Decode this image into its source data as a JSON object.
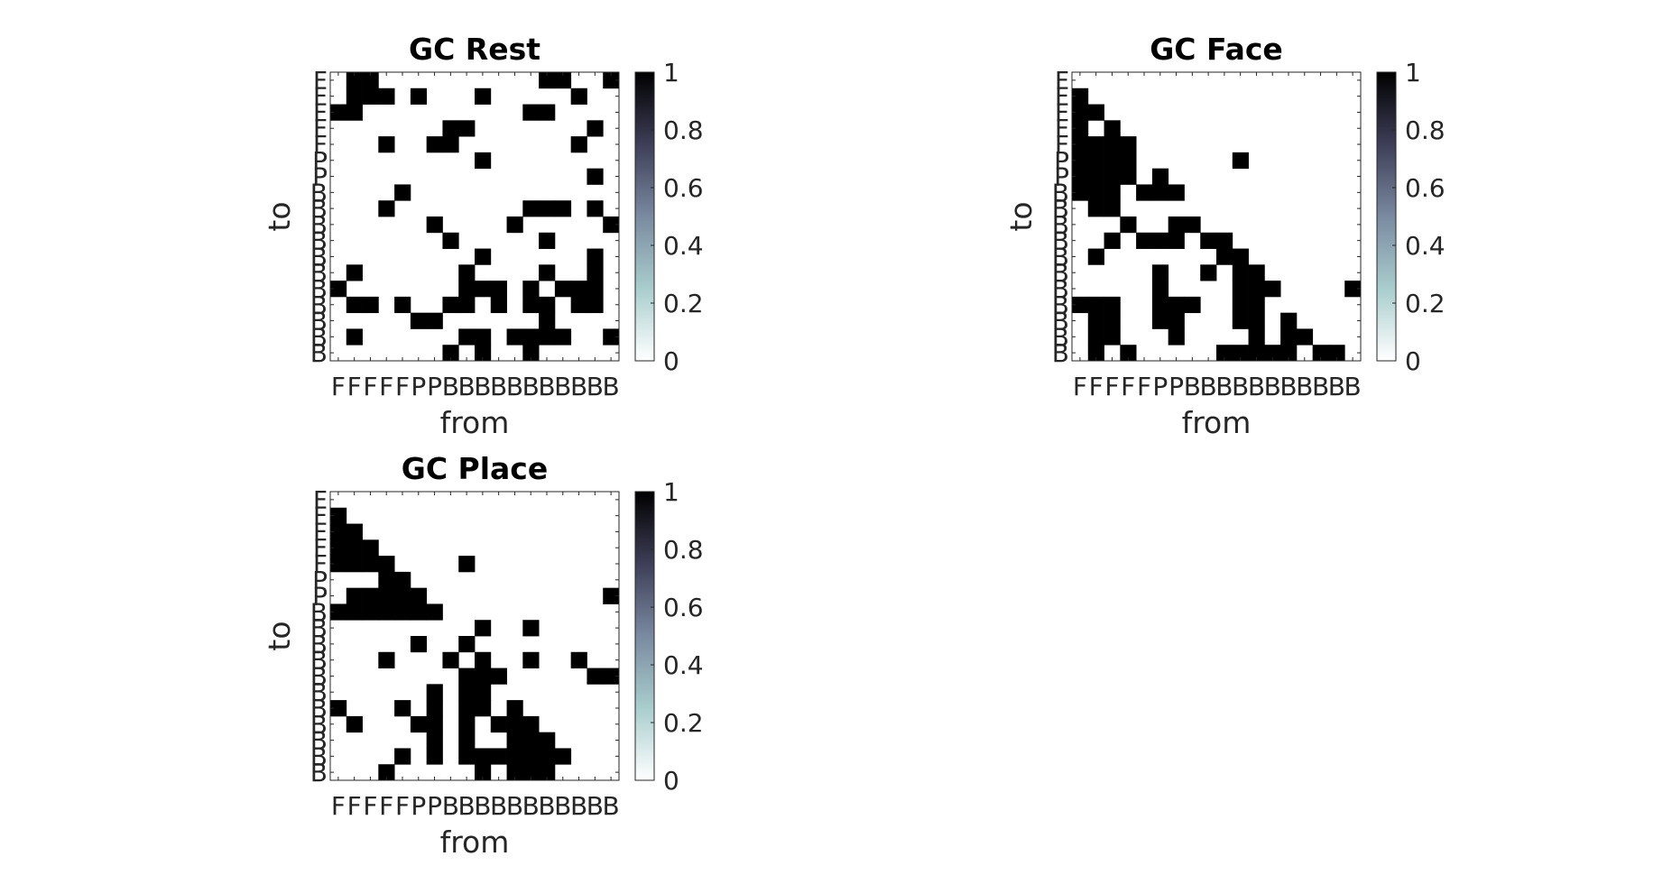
{
  "chart_data": [
    {
      "type": "heatmap",
      "title": "GC Rest",
      "xlabel": "from",
      "ylabel": "to",
      "x_tick_labels": [
        "F",
        "F",
        "F",
        "F",
        "F",
        "P",
        "P",
        "B",
        "B",
        "B",
        "B",
        "B",
        "B",
        "B",
        "B",
        "B",
        "B",
        "B"
      ],
      "y_tick_labels": [
        "F",
        "F",
        "F",
        "F",
        "F",
        "P",
        "P",
        "B",
        "B",
        "B",
        "B",
        "B",
        "B",
        "B",
        "B",
        "B",
        "B",
        "B"
      ],
      "colorbar": {
        "min": 0,
        "max": 1,
        "ticks": [
          "0",
          "0.2",
          "0.4",
          "0.6",
          "0.8",
          "1"
        ]
      },
      "values": [
        [
          0,
          1,
          1,
          0,
          0,
          0,
          0,
          0,
          0,
          0,
          0,
          0,
          0,
          1,
          1,
          0,
          0,
          1
        ],
        [
          0,
          1,
          1,
          1,
          0,
          1,
          0,
          0,
          0,
          1,
          0,
          0,
          0,
          0,
          0,
          1,
          0,
          0
        ],
        [
          1,
          1,
          0,
          0,
          0,
          0,
          0,
          0,
          0,
          0,
          0,
          0,
          1,
          1,
          0,
          0,
          0,
          0
        ],
        [
          0,
          0,
          0,
          0,
          0,
          0,
          0,
          1,
          1,
          0,
          0,
          0,
          0,
          0,
          0,
          0,
          1,
          0
        ],
        [
          0,
          0,
          0,
          1,
          0,
          0,
          1,
          1,
          0,
          0,
          0,
          0,
          0,
          0,
          0,
          1,
          0,
          0
        ],
        [
          0,
          0,
          0,
          0,
          0,
          0,
          0,
          0,
          0,
          1,
          0,
          0,
          0,
          0,
          0,
          0,
          0,
          0
        ],
        [
          0,
          0,
          0,
          0,
          0,
          0,
          0,
          0,
          0,
          0,
          0,
          0,
          0,
          0,
          0,
          0,
          1,
          0
        ],
        [
          0,
          0,
          0,
          0,
          1,
          0,
          0,
          0,
          0,
          0,
          0,
          0,
          0,
          0,
          0,
          0,
          0,
          0
        ],
        [
          0,
          0,
          0,
          1,
          0,
          0,
          0,
          0,
          0,
          0,
          0,
          0,
          1,
          1,
          1,
          0,
          1,
          0
        ],
        [
          0,
          0,
          0,
          0,
          0,
          0,
          1,
          0,
          0,
          0,
          0,
          1,
          0,
          0,
          0,
          0,
          0,
          1
        ],
        [
          0,
          0,
          0,
          0,
          0,
          0,
          0,
          1,
          0,
          0,
          0,
          0,
          0,
          1,
          0,
          0,
          0,
          0
        ],
        [
          0,
          0,
          0,
          0,
          0,
          0,
          0,
          0,
          0,
          1,
          0,
          0,
          0,
          0,
          0,
          0,
          1,
          0
        ],
        [
          0,
          1,
          0,
          0,
          0,
          0,
          0,
          0,
          1,
          0,
          0,
          0,
          0,
          1,
          0,
          0,
          1,
          0
        ],
        [
          1,
          0,
          0,
          0,
          0,
          0,
          0,
          0,
          1,
          1,
          1,
          0,
          1,
          0,
          1,
          1,
          1,
          0
        ],
        [
          0,
          1,
          1,
          0,
          1,
          0,
          0,
          1,
          1,
          0,
          1,
          0,
          1,
          1,
          0,
          1,
          1,
          0
        ],
        [
          0,
          0,
          0,
          0,
          0,
          1,
          1,
          0,
          0,
          0,
          0,
          0,
          0,
          1,
          0,
          0,
          0,
          0
        ],
        [
          0,
          1,
          0,
          0,
          0,
          0,
          0,
          0,
          1,
          1,
          0,
          1,
          1,
          1,
          1,
          0,
          0,
          1
        ],
        [
          0,
          0,
          0,
          0,
          0,
          0,
          0,
          1,
          0,
          1,
          0,
          0,
          1,
          0,
          0,
          0,
          0,
          0
        ]
      ]
    },
    {
      "type": "heatmap",
      "title": "GC Face",
      "xlabel": "from",
      "ylabel": "to",
      "x_tick_labels": [
        "F",
        "F",
        "F",
        "F",
        "F",
        "P",
        "P",
        "B",
        "B",
        "B",
        "B",
        "B",
        "B",
        "B",
        "B",
        "B",
        "B",
        "B"
      ],
      "y_tick_labels": [
        "F",
        "F",
        "F",
        "F",
        "F",
        "P",
        "P",
        "B",
        "B",
        "B",
        "B",
        "B",
        "B",
        "B",
        "B",
        "B",
        "B",
        "B"
      ],
      "colorbar": {
        "min": 0,
        "max": 1,
        "ticks": [
          "0",
          "0.2",
          "0.4",
          "0.6",
          "0.8",
          "1"
        ]
      },
      "values": [
        [
          0,
          0,
          0,
          0,
          0,
          0,
          0,
          0,
          0,
          0,
          0,
          0,
          0,
          0,
          0,
          0,
          0,
          0
        ],
        [
          1,
          0,
          0,
          0,
          0,
          0,
          0,
          0,
          0,
          0,
          0,
          0,
          0,
          0,
          0,
          0,
          0,
          0
        ],
        [
          1,
          1,
          0,
          0,
          0,
          0,
          0,
          0,
          0,
          0,
          0,
          0,
          0,
          0,
          0,
          0,
          0,
          0
        ],
        [
          1,
          0,
          1,
          0,
          0,
          0,
          0,
          0,
          0,
          0,
          0,
          0,
          0,
          0,
          0,
          0,
          0,
          0
        ],
        [
          1,
          1,
          1,
          1,
          0,
          0,
          0,
          0,
          0,
          0,
          0,
          0,
          0,
          0,
          0,
          0,
          0,
          0
        ],
        [
          1,
          1,
          1,
          1,
          0,
          0,
          0,
          0,
          0,
          0,
          1,
          0,
          0,
          0,
          0,
          0,
          0,
          0
        ],
        [
          1,
          1,
          1,
          1,
          0,
          1,
          0,
          0,
          0,
          0,
          0,
          0,
          0,
          0,
          0,
          0,
          0,
          0
        ],
        [
          1,
          1,
          1,
          0,
          1,
          1,
          1,
          0,
          0,
          0,
          0,
          0,
          0,
          0,
          0,
          0,
          0,
          0
        ],
        [
          0,
          1,
          1,
          0,
          0,
          0,
          0,
          0,
          0,
          0,
          0,
          0,
          0,
          0,
          0,
          0,
          0,
          0
        ],
        [
          0,
          0,
          0,
          1,
          0,
          0,
          1,
          1,
          0,
          0,
          0,
          0,
          0,
          0,
          0,
          0,
          0,
          0
        ],
        [
          0,
          0,
          1,
          0,
          1,
          1,
          1,
          0,
          1,
          1,
          0,
          0,
          0,
          0,
          0,
          0,
          0,
          0
        ],
        [
          0,
          1,
          0,
          0,
          0,
          0,
          0,
          0,
          0,
          1,
          1,
          0,
          0,
          0,
          0,
          0,
          0,
          0
        ],
        [
          0,
          0,
          0,
          0,
          0,
          1,
          0,
          0,
          1,
          0,
          1,
          1,
          0,
          0,
          0,
          0,
          0,
          0
        ],
        [
          0,
          0,
          0,
          0,
          0,
          1,
          0,
          0,
          0,
          0,
          1,
          1,
          1,
          0,
          0,
          0,
          0,
          1
        ],
        [
          1,
          1,
          1,
          0,
          0,
          1,
          1,
          1,
          0,
          0,
          1,
          1,
          0,
          0,
          0,
          0,
          0,
          0
        ],
        [
          0,
          1,
          1,
          0,
          0,
          1,
          1,
          0,
          0,
          0,
          1,
          1,
          0,
          1,
          0,
          0,
          0,
          0
        ],
        [
          0,
          1,
          1,
          0,
          0,
          0,
          1,
          0,
          0,
          0,
          0,
          1,
          0,
          1,
          1,
          0,
          0,
          0
        ],
        [
          0,
          1,
          0,
          1,
          0,
          0,
          0,
          0,
          0,
          1,
          1,
          1,
          1,
          1,
          0,
          1,
          1,
          0
        ]
      ]
    },
    {
      "type": "heatmap",
      "title": "GC Place",
      "xlabel": "from",
      "ylabel": "to",
      "x_tick_labels": [
        "F",
        "F",
        "F",
        "F",
        "F",
        "P",
        "P",
        "B",
        "B",
        "B",
        "B",
        "B",
        "B",
        "B",
        "B",
        "B",
        "B",
        "B"
      ],
      "y_tick_labels": [
        "F",
        "F",
        "F",
        "F",
        "F",
        "P",
        "P",
        "B",
        "B",
        "B",
        "B",
        "B",
        "B",
        "B",
        "B",
        "B",
        "B",
        "B"
      ],
      "colorbar": {
        "min": 0,
        "max": 1,
        "ticks": [
          "0",
          "0.2",
          "0.4",
          "0.6",
          "0.8",
          "1"
        ]
      },
      "values": [
        [
          0,
          0,
          0,
          0,
          0,
          0,
          0,
          0,
          0,
          0,
          0,
          0,
          0,
          0,
          0,
          0,
          0,
          0
        ],
        [
          1,
          0,
          0,
          0,
          0,
          0,
          0,
          0,
          0,
          0,
          0,
          0,
          0,
          0,
          0,
          0,
          0,
          0
        ],
        [
          1,
          1,
          0,
          0,
          0,
          0,
          0,
          0,
          0,
          0,
          0,
          0,
          0,
          0,
          0,
          0,
          0,
          0
        ],
        [
          1,
          1,
          1,
          0,
          0,
          0,
          0,
          0,
          0,
          0,
          0,
          0,
          0,
          0,
          0,
          0,
          0,
          0
        ],
        [
          1,
          1,
          1,
          1,
          0,
          0,
          0,
          0,
          1,
          0,
          0,
          0,
          0,
          0,
          0,
          0,
          0,
          0
        ],
        [
          0,
          0,
          0,
          1,
          1,
          0,
          0,
          0,
          0,
          0,
          0,
          0,
          0,
          0,
          0,
          0,
          0,
          0
        ],
        [
          0,
          1,
          1,
          1,
          1,
          1,
          0,
          0,
          0,
          0,
          0,
          0,
          0,
          0,
          0,
          0,
          0,
          1
        ],
        [
          1,
          1,
          1,
          1,
          1,
          1,
          1,
          0,
          0,
          0,
          0,
          0,
          0,
          0,
          0,
          0,
          0,
          0
        ],
        [
          0,
          0,
          0,
          0,
          0,
          0,
          0,
          0,
          0,
          1,
          0,
          0,
          1,
          0,
          0,
          0,
          0,
          0
        ],
        [
          0,
          0,
          0,
          0,
          0,
          1,
          0,
          0,
          1,
          0,
          0,
          0,
          0,
          0,
          0,
          0,
          0,
          0
        ],
        [
          0,
          0,
          0,
          1,
          0,
          0,
          0,
          1,
          0,
          1,
          0,
          0,
          1,
          0,
          0,
          1,
          0,
          0
        ],
        [
          0,
          0,
          0,
          0,
          0,
          0,
          0,
          0,
          1,
          1,
          1,
          0,
          0,
          0,
          0,
          0,
          1,
          1
        ],
        [
          0,
          0,
          0,
          0,
          0,
          0,
          1,
          0,
          1,
          1,
          0,
          0,
          0,
          0,
          0,
          0,
          0,
          0
        ],
        [
          1,
          0,
          0,
          0,
          1,
          0,
          1,
          0,
          1,
          1,
          0,
          1,
          0,
          0,
          0,
          0,
          0,
          0
        ],
        [
          0,
          1,
          0,
          0,
          0,
          1,
          1,
          0,
          1,
          0,
          1,
          1,
          1,
          0,
          0,
          0,
          0,
          0
        ],
        [
          0,
          0,
          0,
          0,
          0,
          0,
          1,
          0,
          1,
          0,
          0,
          1,
          1,
          1,
          0,
          0,
          0,
          0
        ],
        [
          0,
          0,
          0,
          0,
          1,
          0,
          1,
          0,
          1,
          1,
          1,
          1,
          1,
          1,
          1,
          0,
          0,
          0
        ],
        [
          0,
          0,
          0,
          1,
          0,
          0,
          0,
          0,
          0,
          1,
          0,
          1,
          1,
          1,
          0,
          0,
          0,
          0
        ]
      ]
    }
  ]
}
